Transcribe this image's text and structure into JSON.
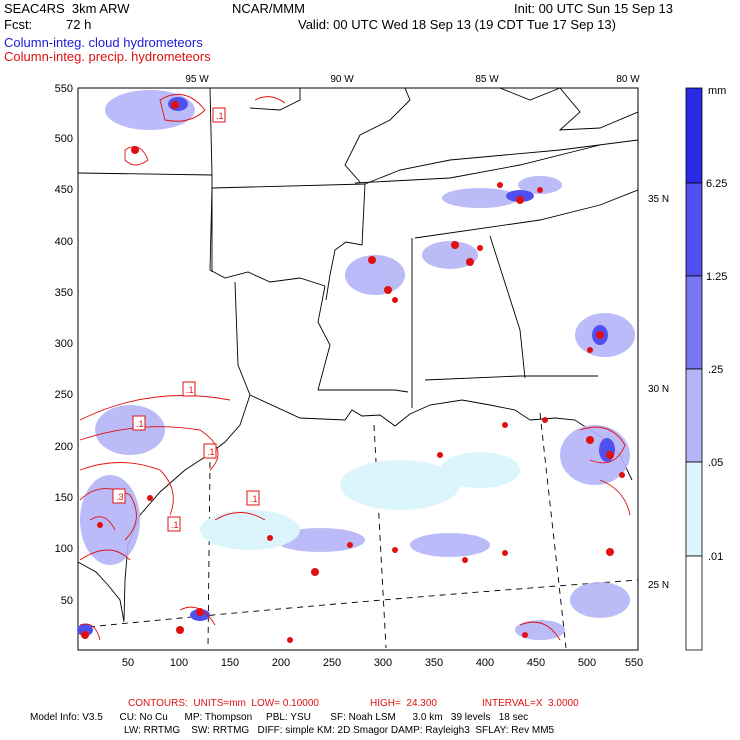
{
  "header": {
    "project": "SEAC4RS  3km ARW",
    "center": "NCAR/MMM",
    "init": "Init: 00 UTC Sun 15 Sep 13",
    "fcst_label": "Fcst:",
    "fcst_value": "72 h",
    "valid": "Valid: 00 UTC Wed 18 Sep 13 (19 CDT Tue 17 Sep 13)",
    "field1": "Column-integ. cloud hydrometeors",
    "field2": "Column-integ. precip. hydrometeors"
  },
  "axes": {
    "x_ticks": [
      "50",
      "100",
      "150",
      "200",
      "250",
      "300",
      "350",
      "400",
      "450",
      "500",
      "550"
    ],
    "y_ticks": [
      "50",
      "100",
      "150",
      "200",
      "250",
      "300",
      "350",
      "400",
      "450",
      "500",
      "550"
    ],
    "lon_labels": [
      "95 W",
      "90 W",
      "85 W",
      "80 W"
    ],
    "lat_labels": [
      "35 N",
      "30 N",
      "25 N"
    ]
  },
  "colorbar": {
    "unit": "mm",
    "labels": [
      "6.25",
      "1.25",
      ".25",
      ".05",
      ".01"
    ],
    "colors": [
      "#2a2ae6",
      "#5050ee",
      "#7878f2",
      "#b4b4f8",
      "#dcf4fb",
      "#ffffff"
    ]
  },
  "contour_labels": [
    ".1",
    ".1",
    ".1",
    ".1",
    ".1",
    ".3",
    ".1"
  ],
  "footer": {
    "contours_prefix": "CONTOURS:  UNITS=mm  LOW= 0.10000",
    "high": "HIGH=  24.300",
    "interval": "INTERVAL=X  3.0000",
    "line1": "Model Info: V3.5      CU: No Cu      MP: Thompson     PBL: YSU       SF: Noah LSM      3.0 km   39 levels   18 sec",
    "line2": "LW: RRTMG    SW: RRTMG   DIFF: simple KM: 2D Smagor DAMP: Rayleigh3  SFLAY: Rev MM5"
  }
}
